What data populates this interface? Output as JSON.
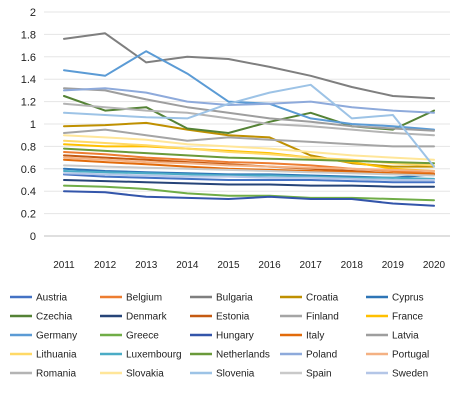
{
  "chart_data": {
    "type": "line",
    "title": "",
    "xlabel": "",
    "ylabel": "",
    "x": [
      "2011",
      "2012",
      "2013",
      "2014",
      "2015",
      "2016",
      "2017",
      "2018",
      "2019",
      "2020"
    ],
    "ylim": [
      0,
      2
    ],
    "yticks": [
      "0",
      "0.2",
      "0.4",
      "0.6",
      "0.8",
      "1",
      "1.2",
      "1.4",
      "1.6",
      "1.8",
      "2"
    ],
    "grid": true,
    "legend_position": "bottom",
    "series": [
      {
        "name": "Austria",
        "color": "#4472c4",
        "values": [
          0.55,
          0.53,
          0.52,
          0.51,
          0.5,
          0.5,
          0.5,
          0.49,
          0.48,
          0.48
        ]
      },
      {
        "name": "Belgium",
        "color": "#ed7d31",
        "values": [
          0.75,
          0.73,
          0.7,
          0.68,
          0.66,
          0.65,
          0.63,
          0.6,
          0.58,
          0.56
        ]
      },
      {
        "name": "Bulgaria",
        "color": "#7f7f7f",
        "values": [
          1.76,
          1.81,
          1.55,
          1.6,
          1.58,
          1.51,
          1.43,
          1.33,
          1.25,
          1.23
        ]
      },
      {
        "name": "Croatia",
        "color": "#bf9000",
        "values": [
          0.98,
          0.99,
          1.01,
          0.95,
          0.9,
          0.88,
          0.72,
          0.65,
          0.62,
          0.62
        ]
      },
      {
        "name": "Cyprus",
        "color": "#2e75b6",
        "values": [
          0.6,
          0.58,
          0.57,
          0.56,
          0.55,
          0.55,
          0.54,
          0.53,
          0.52,
          0.55
        ]
      },
      {
        "name": "Czechia",
        "color": "#548235",
        "values": [
          1.25,
          1.12,
          1.15,
          0.96,
          0.92,
          1.02,
          1.1,
          0.98,
          0.95,
          1.12
        ]
      },
      {
        "name": "Denmark",
        "color": "#264478",
        "values": [
          0.5,
          0.49,
          0.48,
          0.47,
          0.46,
          0.46,
          0.45,
          0.45,
          0.44,
          0.44
        ]
      },
      {
        "name": "Estonia",
        "color": "#c55a11",
        "values": [
          0.72,
          0.7,
          0.68,
          0.66,
          0.64,
          0.62,
          0.6,
          0.58,
          0.56,
          0.55
        ]
      },
      {
        "name": "Finland",
        "color": "#a5a5a5",
        "values": [
          0.92,
          0.95,
          0.9,
          0.85,
          0.88,
          0.86,
          0.84,
          0.82,
          0.8,
          0.8
        ]
      },
      {
        "name": "France",
        "color": "#ffc000",
        "values": [
          0.82,
          0.8,
          0.8,
          0.78,
          0.76,
          0.74,
          0.7,
          0.66,
          0.6,
          0.58
        ]
      },
      {
        "name": "Germany",
        "color": "#5b9bd5",
        "values": [
          1.48,
          1.43,
          1.65,
          1.45,
          1.2,
          1.18,
          1.05,
          1.0,
          0.98,
          0.95
        ]
      },
      {
        "name": "Greece",
        "color": "#70ad47",
        "values": [
          0.45,
          0.44,
          0.42,
          0.38,
          0.36,
          0.36,
          0.34,
          0.34,
          0.33,
          0.32
        ]
      },
      {
        "name": "Hungary",
        "color": "#3355aa",
        "values": [
          0.4,
          0.39,
          0.35,
          0.34,
          0.33,
          0.35,
          0.33,
          0.33,
          0.29,
          0.27
        ]
      },
      {
        "name": "Italy",
        "color": "#e26b0a",
        "values": [
          0.68,
          0.66,
          0.64,
          0.62,
          0.6,
          0.59,
          0.58,
          0.57,
          0.56,
          0.55
        ]
      },
      {
        "name": "Latvia",
        "color": "#9e9e9e",
        "values": [
          1.32,
          1.3,
          1.22,
          1.15,
          1.1,
          1.05,
          1.02,
          0.98,
          0.96,
          0.94
        ]
      },
      {
        "name": "Lithuania",
        "color": "#ffd966",
        "values": [
          0.85,
          0.83,
          0.81,
          0.78,
          0.75,
          0.73,
          0.7,
          0.68,
          0.65,
          0.63
        ]
      },
      {
        "name": "Luxembourg",
        "color": "#4bacc6",
        "values": [
          0.58,
          0.57,
          0.56,
          0.55,
          0.54,
          0.54,
          0.53,
          0.52,
          0.52,
          0.51
        ]
      },
      {
        "name": "Netherlands",
        "color": "#6a9a3a",
        "values": [
          0.78,
          0.76,
          0.74,
          0.72,
          0.7,
          0.69,
          0.68,
          0.67,
          0.66,
          0.65
        ]
      },
      {
        "name": "Poland",
        "color": "#8eaadb",
        "values": [
          1.3,
          1.32,
          1.28,
          1.2,
          1.17,
          1.18,
          1.2,
          1.15,
          1.12,
          1.1
        ]
      },
      {
        "name": "Portugal",
        "color": "#f4b183",
        "values": [
          0.7,
          0.68,
          0.66,
          0.65,
          0.63,
          0.62,
          0.61,
          0.6,
          0.59,
          0.58
        ]
      },
      {
        "name": "Romania",
        "color": "#b4b4b4",
        "values": [
          1.18,
          1.15,
          1.12,
          1.1,
          1.05,
          1.0,
          0.98,
          0.95,
          0.92,
          0.9
        ]
      },
      {
        "name": "Slovakia",
        "color": "#ffe699",
        "values": [
          0.9,
          0.88,
          0.86,
          0.82,
          0.8,
          0.78,
          0.75,
          0.72,
          0.7,
          0.68
        ]
      },
      {
        "name": "Slovenia",
        "color": "#9dc3e6",
        "values": [
          1.1,
          1.08,
          1.06,
          1.05,
          1.18,
          1.28,
          1.35,
          1.05,
          1.08,
          0.62
        ]
      },
      {
        "name": "Spain",
        "color": "#c9c9c9",
        "values": [
          0.63,
          0.62,
          0.61,
          0.6,
          0.59,
          0.58,
          0.57,
          0.56,
          0.55,
          0.54
        ]
      },
      {
        "name": "Sweden",
        "color": "#b4c6e7",
        "values": [
          0.56,
          0.55,
          0.54,
          0.53,
          0.53,
          0.52,
          0.52,
          0.51,
          0.5,
          0.5
        ]
      }
    ]
  }
}
